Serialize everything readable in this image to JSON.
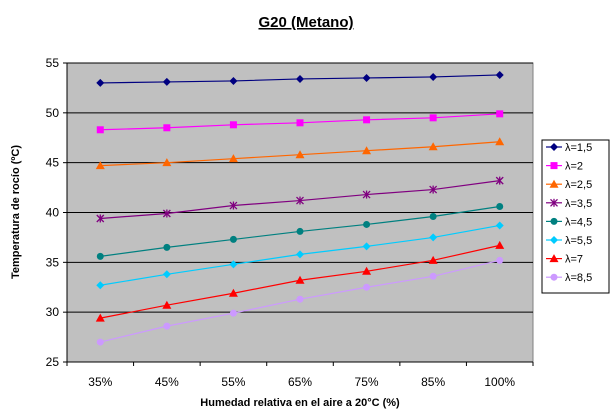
{
  "chart_data": {
    "type": "line",
    "title": "G20 (Metano)",
    "xlabel": "Humedad relativa en el aire a 20°C (%)",
    "ylabel": "Temperatura de rocío (ºC)",
    "categories": [
      "35%",
      "45%",
      "55%",
      "65%",
      "75%",
      "85%",
      "100%"
    ],
    "ylim": [
      25,
      55
    ],
    "yticks": [
      25,
      30,
      35,
      40,
      45,
      50,
      55
    ],
    "grid": true,
    "legend_position": "right",
    "plot_background": "#c0c0c0",
    "series": [
      {
        "name": "λ=1,5",
        "color": "#000080",
        "marker": "diamond",
        "values": [
          53.0,
          53.1,
          53.2,
          53.4,
          53.5,
          53.6,
          53.8
        ]
      },
      {
        "name": "λ=2",
        "color": "#ff00ff",
        "marker": "square",
        "values": [
          48.3,
          48.5,
          48.8,
          49.0,
          49.3,
          49.5,
          49.9
        ]
      },
      {
        "name": "λ=2,5",
        "color": "#ff6600",
        "marker": "triangle",
        "values": [
          44.7,
          45.0,
          45.4,
          45.8,
          46.2,
          46.6,
          47.1
        ]
      },
      {
        "name": "λ=3,5",
        "color": "#800080",
        "marker": "x",
        "values": [
          39.4,
          39.9,
          40.7,
          41.2,
          41.8,
          42.3,
          43.2
        ]
      },
      {
        "name": "λ=4,5",
        "color": "#008080",
        "marker": "circle",
        "values": [
          35.6,
          36.5,
          37.3,
          38.1,
          38.8,
          39.6,
          40.6
        ]
      },
      {
        "name": "λ=5,5",
        "color": "#00ccff",
        "marker": "diamond",
        "values": [
          32.7,
          33.8,
          34.8,
          35.8,
          36.6,
          37.5,
          38.7
        ]
      },
      {
        "name": "λ=7",
        "color": "#ff0000",
        "marker": "triangle",
        "values": [
          29.4,
          30.7,
          31.9,
          33.2,
          34.1,
          35.2,
          36.7
        ]
      },
      {
        "name": "λ=8,5",
        "color": "#cc99ff",
        "marker": "circle",
        "values": [
          27.0,
          28.6,
          29.9,
          31.3,
          32.5,
          33.6,
          35.2
        ]
      }
    ]
  }
}
